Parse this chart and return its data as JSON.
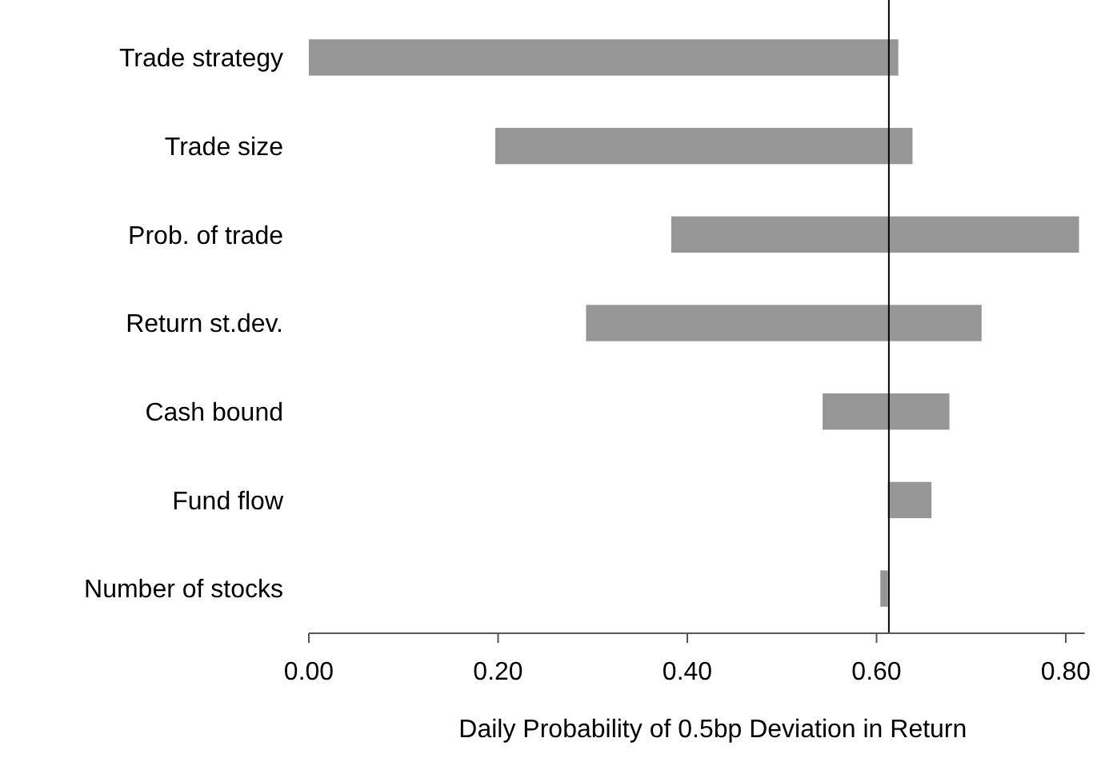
{
  "chart_data": {
    "type": "bar",
    "orientation": "horizontal",
    "xlabel": "Daily Probability of 0.5bp Deviation in Return",
    "categories": [
      "Trade strategy",
      "Trade size",
      "Prob. of trade",
      "Return st.dev.",
      "Cash bound",
      "Fund flow",
      "Number of stocks"
    ],
    "base": [
      0.0,
      0.197,
      0.383,
      0.293,
      0.543,
      0.612,
      0.604
    ],
    "values": [
      0.623,
      0.441,
      0.431,
      0.418,
      0.134,
      0.046,
      0.008
    ],
    "color": "#969696",
    "xlim": [
      0,
      0.82
    ],
    "xticks": [
      {
        "value": 0,
        "label": "0.00"
      },
      {
        "value": 0.2,
        "label": "0.20"
      },
      {
        "value": 0.4,
        "label": "0.40"
      },
      {
        "value": 0.6,
        "label": "0.60"
      },
      {
        "value": 0.8,
        "label": "0.80"
      }
    ],
    "ref_lines": [
      {
        "axis": "x",
        "value": 0.613,
        "color": "#000000"
      }
    ],
    "grid": false
  }
}
